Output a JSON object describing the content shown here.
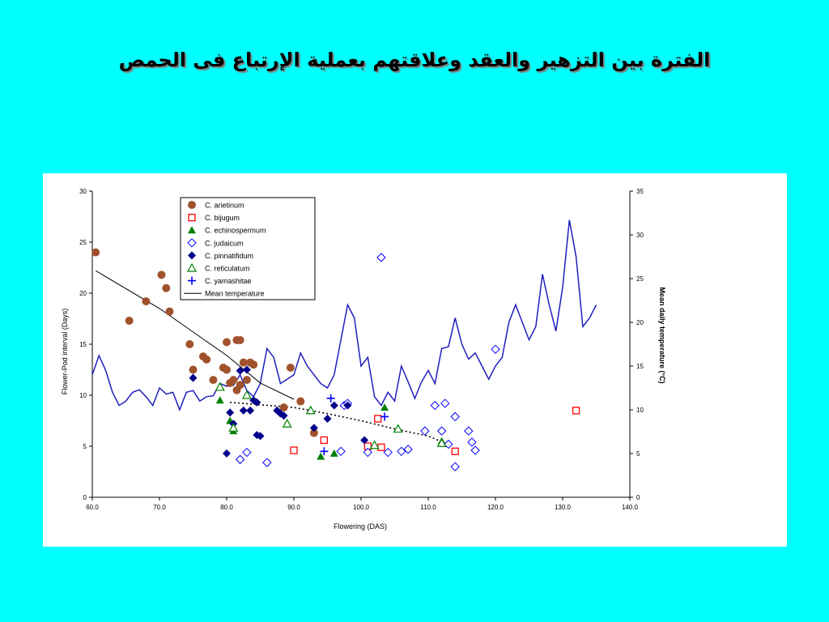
{
  "slide": {
    "title": "الفترة بين التزهير والعقد وعلاقتهم بعملية الإرتباع فى الحمص"
  },
  "chart_data": {
    "type": "scatter",
    "xlabel": "Flowering (DAS)",
    "ylabel": "Flower-Pod interval (Days)",
    "y2label": "Mean daily temperature (°C)",
    "xlim": [
      60,
      140
    ],
    "ylim": [
      0,
      30
    ],
    "y2lim": [
      0,
      35
    ],
    "x_ticks": [
      "60.0",
      "70.0",
      "80.0",
      "90.0",
      "100.0",
      "110.0",
      "120.0",
      "130.0",
      "140.0"
    ],
    "y_ticks": [
      "0",
      "5",
      "10",
      "15",
      "20",
      "25",
      "30"
    ],
    "y2_ticks": [
      "0",
      "5",
      "10",
      "15",
      "20",
      "25",
      "30",
      "35"
    ],
    "grid": false,
    "legend_position": "top-left",
    "series": [
      {
        "name": "C. arietinum",
        "marker": "circle",
        "color": "#A0522D",
        "points": [
          [
            60.5,
            24
          ],
          [
            65.5,
            17.3
          ],
          [
            68,
            19.2
          ],
          [
            70.3,
            21.8
          ],
          [
            71,
            20.5
          ],
          [
            71.5,
            18.2
          ],
          [
            74.5,
            15
          ],
          [
            75,
            12.5
          ],
          [
            76.5,
            13.8
          ],
          [
            77,
            13.5
          ],
          [
            78,
            11.5
          ],
          [
            79.5,
            12.7
          ],
          [
            80,
            12.5
          ],
          [
            80,
            15.2
          ],
          [
            80.5,
            11.2
          ],
          [
            81,
            11.5
          ],
          [
            81.5,
            15.4
          ],
          [
            82,
            15.4
          ],
          [
            81.5,
            10.5
          ],
          [
            82,
            11
          ],
          [
            82.5,
            13.2
          ],
          [
            83,
            11.5
          ],
          [
            83.5,
            13.2
          ],
          [
            84,
            13
          ],
          [
            88.5,
            8.8
          ],
          [
            89.5,
            12.7
          ],
          [
            91,
            9.4
          ],
          [
            93,
            6.3
          ]
        ]
      },
      {
        "name": "C. bijugum",
        "marker": "open-square",
        "color": "#FF0000",
        "points": [
          [
            90,
            4.6
          ],
          [
            94.5,
            5.6
          ],
          [
            101,
            5
          ],
          [
            102.5,
            7.7
          ],
          [
            103,
            4.9
          ],
          [
            114,
            4.5
          ],
          [
            132,
            8.5
          ]
        ]
      },
      {
        "name": "C. echinospermum",
        "marker": "triangle",
        "color": "#008000",
        "points": [
          [
            79,
            9.5
          ],
          [
            80.5,
            7.5
          ],
          [
            81,
            6.5
          ],
          [
            94,
            4
          ],
          [
            96,
            4.3
          ],
          [
            103.5,
            8.8
          ],
          [
            112,
            5.5
          ]
        ]
      },
      {
        "name": "C. judaicum",
        "marker": "open-diamond",
        "color": "#0000FF",
        "points": [
          [
            82,
            3.7
          ],
          [
            83,
            4.4
          ],
          [
            86,
            3.4
          ],
          [
            97,
            4.5
          ],
          [
            97.5,
            9
          ],
          [
            98,
            9.2
          ],
          [
            101,
            4.4
          ],
          [
            103,
            23.5
          ],
          [
            104,
            4.4
          ],
          [
            106,
            4.5
          ],
          [
            107,
            4.7
          ],
          [
            109.5,
            6.5
          ],
          [
            111,
            9
          ],
          [
            112,
            6.5
          ],
          [
            112.5,
            9.2
          ],
          [
            113,
            5.2
          ],
          [
            114,
            7.9
          ],
          [
            114,
            3
          ],
          [
            116,
            6.5
          ],
          [
            116.5,
            5.4
          ],
          [
            117,
            4.6
          ],
          [
            120,
            14.5
          ]
        ]
      },
      {
        "name": "C. pinnatifidum",
        "marker": "diamond",
        "color": "#00008B",
        "points": [
          [
            75,
            11.7
          ],
          [
            80,
            4.3
          ],
          [
            80.5,
            8.3
          ],
          [
            81,
            7.2
          ],
          [
            82,
            12.4
          ],
          [
            82.5,
            8.5
          ],
          [
            83,
            12.5
          ],
          [
            83.5,
            8.5
          ],
          [
            84,
            9.5
          ],
          [
            84.5,
            9.3
          ],
          [
            84.5,
            6.1
          ],
          [
            85,
            6
          ],
          [
            87.5,
            8.5
          ],
          [
            88,
            8.2
          ],
          [
            88.5,
            8
          ],
          [
            93,
            6.8
          ],
          [
            95,
            7.7
          ],
          [
            96,
            9
          ],
          [
            98,
            9
          ],
          [
            100.5,
            5.6
          ]
        ]
      },
      {
        "name": "C. reticulatum",
        "marker": "open-triangle",
        "color": "#008000",
        "points": [
          [
            79,
            10.8
          ],
          [
            81,
            6.8
          ],
          [
            83,
            10
          ],
          [
            89,
            7.2
          ],
          [
            92.5,
            8.5
          ],
          [
            102,
            5.1
          ],
          [
            105.5,
            6.7
          ],
          [
            112,
            5.3
          ]
        ]
      },
      {
        "name": "C. yamashitae",
        "marker": "plus",
        "color": "#0000FF",
        "points": [
          [
            94.5,
            4.5
          ],
          [
            95.5,
            9.7
          ],
          [
            103.5,
            7.9
          ]
        ]
      },
      {
        "name": "Mean temperature",
        "axis": "y2",
        "line": "solid",
        "color": "#1E1EBE",
        "points": [
          [
            60,
            14
          ],
          [
            61,
            16.2
          ],
          [
            62,
            14.5
          ],
          [
            63,
            12
          ],
          [
            64,
            10.5
          ],
          [
            65,
            11
          ],
          [
            66,
            12
          ],
          [
            67,
            12.3
          ],
          [
            68,
            11.5
          ],
          [
            69,
            10.5
          ],
          [
            70,
            12.5
          ],
          [
            71,
            11.8
          ],
          [
            72,
            12
          ],
          [
            73,
            10
          ],
          [
            74,
            12
          ],
          [
            75,
            12.2
          ],
          [
            76,
            11
          ],
          [
            77,
            11.5
          ],
          [
            78,
            11.6
          ],
          [
            79,
            13
          ],
          [
            80,
            12.7
          ],
          [
            81,
            12.8
          ],
          [
            82,
            14
          ],
          [
            83,
            12.2
          ],
          [
            84,
            11.5
          ],
          [
            85,
            13
          ],
          [
            86,
            17
          ],
          [
            87,
            16
          ],
          [
            88,
            13
          ],
          [
            89,
            13.5
          ],
          [
            90,
            14
          ],
          [
            91,
            16.5
          ],
          [
            92,
            15
          ],
          [
            93,
            14
          ],
          [
            94,
            13
          ],
          [
            95,
            12.5
          ],
          [
            96,
            14
          ],
          [
            97,
            18
          ],
          [
            98,
            22
          ],
          [
            99,
            20.5
          ],
          [
            100,
            15
          ],
          [
            101,
            16
          ],
          [
            102,
            11.5
          ],
          [
            103,
            10.5
          ],
          [
            104,
            12
          ],
          [
            105,
            11
          ],
          [
            106,
            15
          ],
          [
            107,
            13.2
          ],
          [
            108,
            11.3
          ],
          [
            109,
            13.2
          ],
          [
            110,
            14.5
          ],
          [
            111,
            13
          ],
          [
            112,
            17
          ],
          [
            113,
            17.2
          ],
          [
            114,
            20.5
          ],
          [
            115,
            17.5
          ],
          [
            116,
            15.8
          ],
          [
            117,
            16.5
          ],
          [
            118,
            15
          ],
          [
            119,
            13.5
          ],
          [
            120,
            15
          ],
          [
            121,
            16
          ],
          [
            122,
            20
          ],
          [
            123,
            22
          ],
          [
            124,
            20
          ],
          [
            125,
            18
          ],
          [
            126,
            19.5
          ],
          [
            127,
            25.5
          ],
          [
            128,
            22
          ],
          [
            129,
            19
          ],
          [
            130,
            24
          ],
          [
            131,
            31.7
          ],
          [
            132,
            27.5
          ],
          [
            133,
            19.5
          ],
          [
            134,
            20.5
          ],
          [
            135,
            22
          ]
        ]
      },
      {
        "name": "",
        "line": "solid",
        "color": "#000000",
        "role": "trend",
        "points": [
          [
            60.5,
            22.2
          ],
          [
            70,
            18.5
          ],
          [
            80,
            13.9
          ],
          [
            85,
            11.2
          ],
          [
            90,
            9.6
          ]
        ]
      },
      {
        "name": "",
        "line": "dotted",
        "color": "#000000",
        "role": "trend",
        "points": [
          [
            80.5,
            9.3
          ],
          [
            90,
            8.8
          ],
          [
            95,
            8.2
          ],
          [
            100,
            7.5
          ],
          [
            105,
            6.7
          ],
          [
            110,
            6.0
          ],
          [
            112.5,
            5.3
          ]
        ]
      }
    ]
  }
}
